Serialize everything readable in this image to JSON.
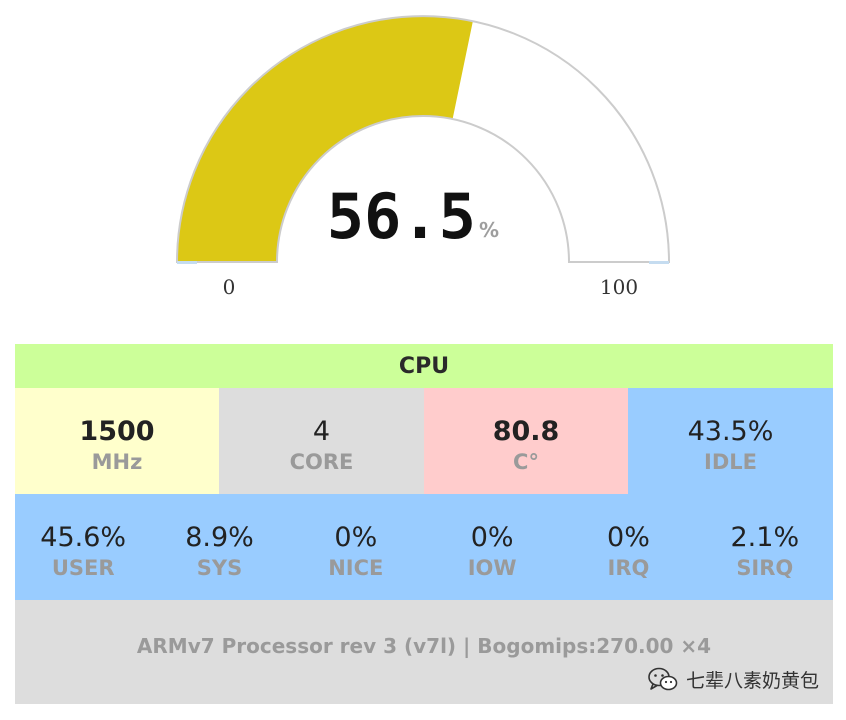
{
  "gauge": {
    "value": 56.5,
    "value_text": "56.5",
    "unit": "%",
    "min": 0,
    "max": 100,
    "min_label": "0",
    "max_label": "100",
    "fill_color": "#dcc815",
    "track_color": "#ffffff",
    "border_color": "#cccccc",
    "base_color": "#c5dcf0"
  },
  "cpu": {
    "header": "CPU",
    "header_color": "#ccff99",
    "stats_top": [
      {
        "value": "1500",
        "label": "MHz",
        "bg": "#ffffcc",
        "bold": true
      },
      {
        "value": "4",
        "label": "CORE",
        "bg": "#dddddd",
        "bold": false
      },
      {
        "value": "80.8",
        "label": "C°",
        "bg": "#ffcccc",
        "bold": true
      },
      {
        "value": "43.5%",
        "label": "IDLE",
        "bg": "#99ccff",
        "bold": false
      }
    ],
    "stats_bottom": [
      {
        "value": "45.6%",
        "label": "USER"
      },
      {
        "value": "8.9%",
        "label": "SYS"
      },
      {
        "value": "0%",
        "label": "NICE"
      },
      {
        "value": "0%",
        "label": "IOW"
      },
      {
        "value": "0%",
        "label": "IRQ"
      },
      {
        "value": "2.1%",
        "label": "SIRQ"
      }
    ],
    "bottom_bg": "#99ccff",
    "footer_text": "ARMv7 Processor rev 3 (v7l) | Bogomips:270.00 ×4",
    "footer_bg": "#dddddd"
  },
  "watermark": {
    "icon": "wechat-icon",
    "text": "七辈八素奶黄包"
  }
}
